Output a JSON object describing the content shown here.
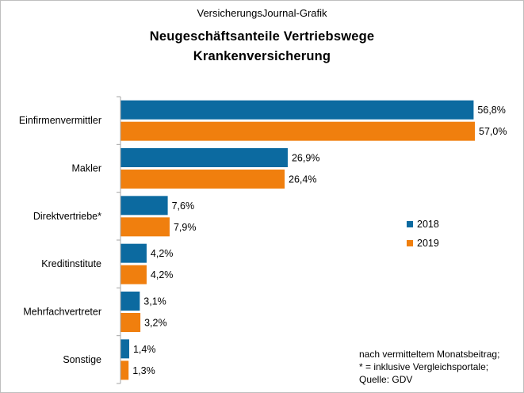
{
  "source_label": "VersicherungsJournal-Grafik",
  "title_line1": "Neugeschäftsanteile  Vertriebswege",
  "title_line2": "Krankenversicherung",
  "footnote": [
    "nach vermitteltem Monatsbeitrag;",
    "* = inklusive Vergleichsportale;",
    "Quelle: GDV"
  ],
  "colors": {
    "2018": "#0c6aa0",
    "2019": "#f07f0e",
    "axis": "#a6a6a6"
  },
  "chart_data": {
    "type": "bar",
    "orientation": "horizontal",
    "title": "Neugeschäftsanteile  Vertriebswege Krankenversicherung",
    "categories": [
      "Einfirmenvermittler",
      "Makler",
      "Direktvertriebe*",
      "Kreditinstitute",
      "Mehrfachvertreter",
      "Sonstige"
    ],
    "series": [
      {
        "name": "2018",
        "values": [
          56.8,
          26.9,
          7.6,
          4.2,
          3.1,
          1.4
        ],
        "labels": [
          "56,8%",
          "26,9%",
          "7,6%",
          "4,2%",
          "3,1%",
          "1,4%"
        ]
      },
      {
        "name": "2019",
        "values": [
          57.0,
          26.4,
          7.9,
          4.2,
          3.2,
          1.3
        ],
        "labels": [
          "57,0%",
          "26,4%",
          "7,9%",
          "4,2%",
          "3,2%",
          "1,3%"
        ]
      }
    ],
    "xlim": [
      0,
      57
    ],
    "grid": false,
    "legend_position": "right"
  }
}
